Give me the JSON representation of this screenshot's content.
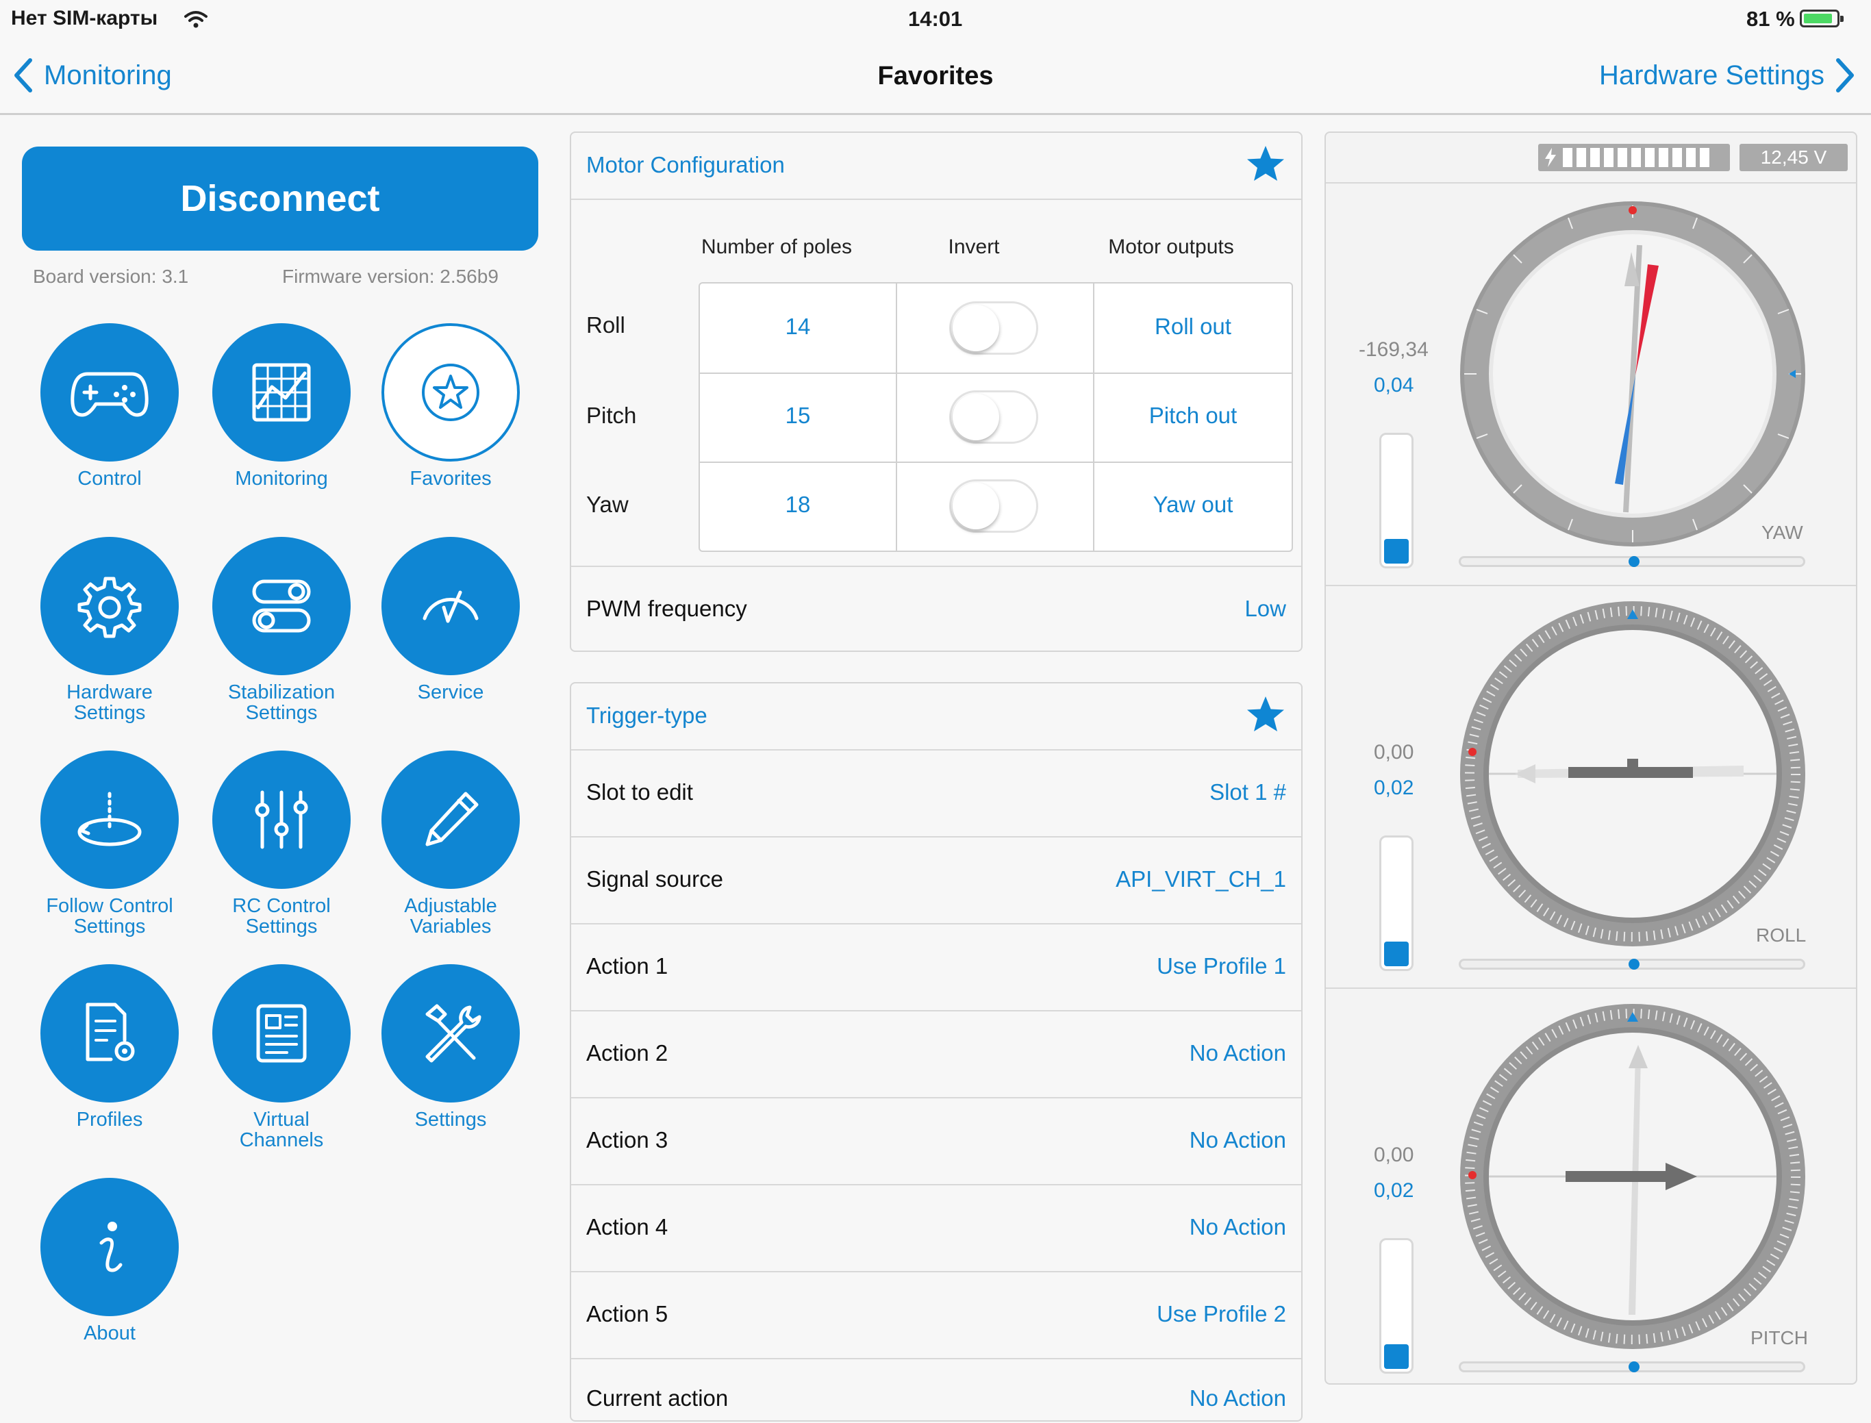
{
  "status_bar": {
    "carrier": "Нет SIM-карты",
    "time": "14:01",
    "battery": "81 %"
  },
  "nav": {
    "back_label": "Monitoring",
    "title": "Favorites",
    "forward_label": "Hardware Settings"
  },
  "sidebar": {
    "disconnect_label": "Disconnect",
    "board_version": "Board version: 3.1",
    "firmware_version": "Firmware version: 2.56b9",
    "tiles": [
      {
        "label": "Control",
        "icon": "gamepad-icon"
      },
      {
        "label": "Monitoring",
        "icon": "grid-chart-icon"
      },
      {
        "label": "Favorites",
        "icon": "star-icon"
      },
      {
        "label": "Hardware\nSettings",
        "icon": "gear-icon"
      },
      {
        "label": "Stabilization\nSettings",
        "icon": "toggles-icon"
      },
      {
        "label": "Service",
        "icon": "gauge-icon"
      },
      {
        "label": "Follow Control\nSettings",
        "icon": "follow-icon"
      },
      {
        "label": "RC Control\nSettings",
        "icon": "sliders-icon"
      },
      {
        "label": "Adjustable\nVariables",
        "icon": "pencil-icon"
      },
      {
        "label": "Profiles",
        "icon": "document-gear-icon"
      },
      {
        "label": "Virtual\nChannels",
        "icon": "newspaper-icon"
      },
      {
        "label": "Settings",
        "icon": "tools-icon"
      },
      {
        "label": "About",
        "icon": "info-icon"
      }
    ]
  },
  "motor_config": {
    "title": "Motor Configuration",
    "columns": [
      "Number of poles",
      "Invert",
      "Motor outputs"
    ],
    "rows": [
      {
        "name": "Roll",
        "poles": "14",
        "invert": false,
        "output": "Roll out"
      },
      {
        "name": "Pitch",
        "poles": "15",
        "invert": false,
        "output": "Pitch out"
      },
      {
        "name": "Yaw",
        "poles": "18",
        "invert": false,
        "output": "Yaw out"
      }
    ],
    "pwm_label": "PWM frequency",
    "pwm_value": "Low"
  },
  "trigger": {
    "title": "Trigger-type",
    "rows": [
      {
        "label": "Slot to edit",
        "value": "Slot 1 #"
      },
      {
        "label": "Signal source",
        "value": "API_VIRT_CH_1"
      },
      {
        "label": "Action 1",
        "value": "Use Profile 1"
      },
      {
        "label": "Action 2",
        "value": "No Action"
      },
      {
        "label": "Action 3",
        "value": "No Action"
      },
      {
        "label": "Action 4",
        "value": "No Action"
      },
      {
        "label": "Action 5",
        "value": "Use Profile 2"
      },
      {
        "label": "Current action",
        "value": "No Action"
      }
    ]
  },
  "sensors": {
    "voltage": "12,45 V",
    "dials": [
      {
        "name": "YAW",
        "angle": "-169,34",
        "rate": "0,04"
      },
      {
        "name": "ROLL",
        "angle": "0,00",
        "rate": "0,02"
      },
      {
        "name": "PITCH",
        "angle": "0,00",
        "rate": "0,02"
      }
    ]
  },
  "colors": {
    "accent": "#0f86d3",
    "link": "#1485cf",
    "background": "#f7f7f7"
  }
}
